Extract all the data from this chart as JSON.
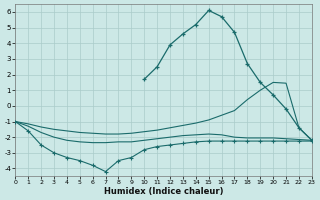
{
  "xlabel": "Humidex (Indice chaleur)",
  "background_color": "#cce8e6",
  "grid_color": "#aaccca",
  "line_color": "#1a6b6b",
  "xlim": [
    0,
    23
  ],
  "ylim": [
    -4.5,
    6.5
  ],
  "xticks": [
    0,
    1,
    2,
    3,
    4,
    5,
    6,
    7,
    8,
    9,
    10,
    11,
    12,
    13,
    14,
    15,
    16,
    17,
    18,
    19,
    20,
    21,
    22,
    23
  ],
  "yticks": [
    -4,
    -3,
    -2,
    -1,
    0,
    1,
    2,
    3,
    4,
    5,
    6
  ],
  "curve_peak_x": [
    10,
    11,
    12,
    13,
    14,
    15,
    16,
    17,
    18,
    19,
    20,
    21,
    22,
    23
  ],
  "curve_peak_y": [
    1.7,
    2.5,
    3.9,
    4.6,
    5.2,
    6.1,
    5.7,
    4.7,
    2.7,
    1.5,
    0.7,
    -0.2,
    -1.4,
    -2.2
  ],
  "curve_upper_x": [
    0,
    1,
    2,
    3,
    4,
    5,
    6,
    7,
    8,
    9,
    10,
    11,
    12,
    13,
    14,
    15,
    16,
    17,
    18,
    19,
    20,
    21,
    22,
    23
  ],
  "curve_upper_y": [
    -1.0,
    -1.15,
    -1.35,
    -1.5,
    -1.6,
    -1.7,
    -1.75,
    -1.8,
    -1.8,
    -1.75,
    -1.65,
    -1.55,
    -1.4,
    -1.25,
    -1.1,
    -0.9,
    -0.6,
    -0.3,
    0.4,
    1.0,
    1.5,
    1.45,
    -1.4,
    -2.2
  ],
  "curve_mid_x": [
    0,
    1,
    2,
    3,
    4,
    5,
    6,
    7,
    8,
    9,
    10,
    11,
    12,
    13,
    14,
    15,
    16,
    17,
    18,
    19,
    20,
    21,
    22,
    23
  ],
  "curve_mid_y": [
    -1.0,
    -1.3,
    -1.7,
    -2.0,
    -2.2,
    -2.3,
    -2.35,
    -2.35,
    -2.3,
    -2.3,
    -2.2,
    -2.1,
    -2.0,
    -1.9,
    -1.85,
    -1.8,
    -1.85,
    -2.0,
    -2.05,
    -2.05,
    -2.05,
    -2.1,
    -2.15,
    -2.2
  ],
  "curve_bot_x": [
    0,
    1,
    2,
    3,
    4,
    5,
    6,
    7,
    8,
    9,
    10,
    11,
    12,
    13,
    14,
    15,
    16,
    17,
    18,
    19,
    20,
    21,
    22,
    23
  ],
  "curve_bot_y": [
    -1.0,
    -1.6,
    -2.5,
    -3.0,
    -3.3,
    -3.5,
    -3.8,
    -4.2,
    -3.5,
    -3.3,
    -2.8,
    -2.6,
    -2.5,
    -2.4,
    -2.3,
    -2.25,
    -2.25,
    -2.25,
    -2.25,
    -2.25,
    -2.25,
    -2.25,
    -2.25,
    -2.25
  ]
}
